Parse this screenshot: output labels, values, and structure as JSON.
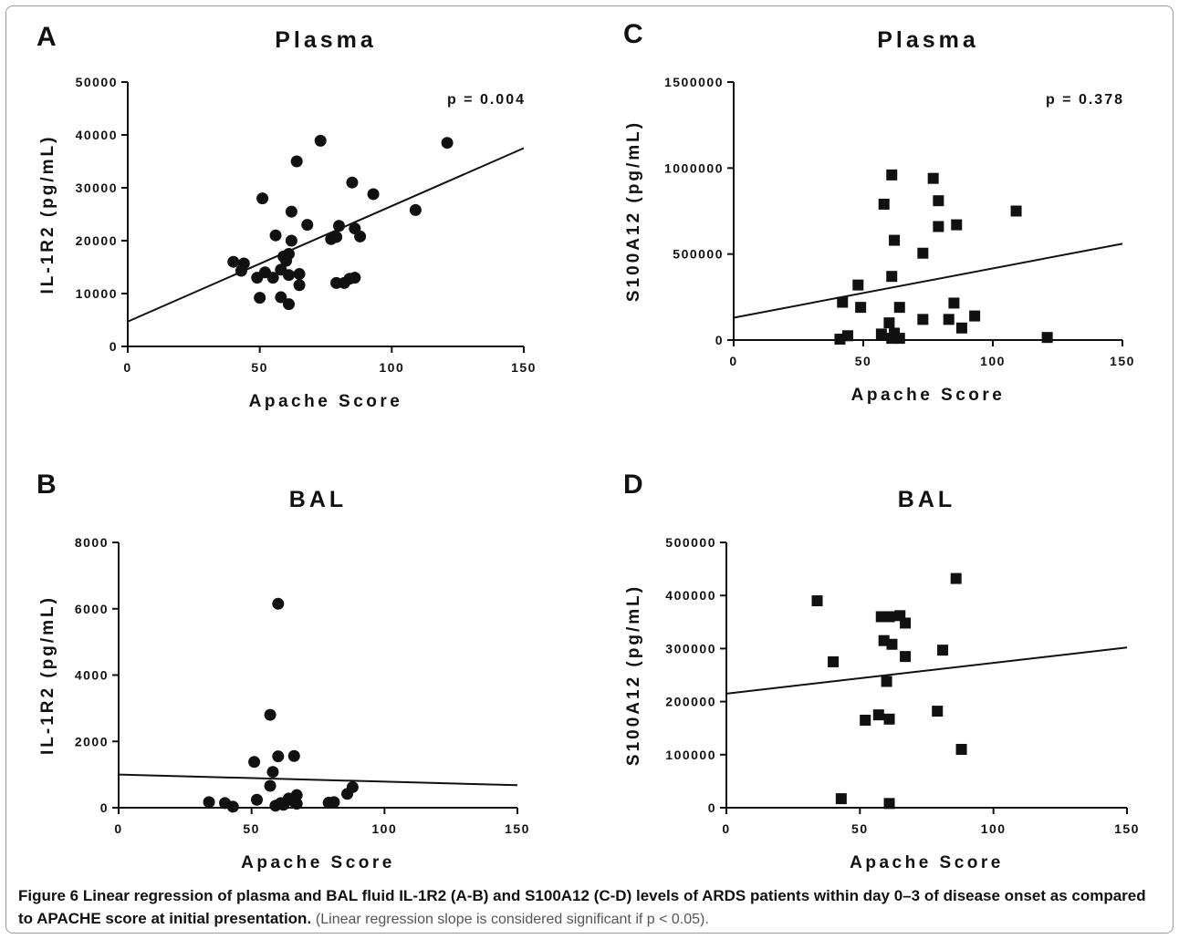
{
  "chart_data": [
    {
      "panel": "A",
      "type": "scatter",
      "marker": "circle",
      "title": "Plasma",
      "xlabel": "Apache Score",
      "ylabel": "IL-1R2 (pg/mL)",
      "xlim": [
        0,
        150
      ],
      "ylim": [
        0,
        50000
      ],
      "xticks": [
        "0",
        "50",
        "100",
        "150"
      ],
      "yticks": [
        "0",
        "10000",
        "20000",
        "30000",
        "40000",
        "50000"
      ],
      "annotation": "p = 0.004",
      "regression": {
        "x": [
          0,
          150
        ],
        "y": [
          4700,
          37500
        ]
      },
      "points": [
        [
          40,
          16000
        ],
        [
          43,
          14300
        ],
        [
          44,
          15700
        ],
        [
          49,
          13000
        ],
        [
          50,
          9200
        ],
        [
          51,
          28000
        ],
        [
          52,
          14000
        ],
        [
          55,
          13000
        ],
        [
          56,
          21000
        ],
        [
          58,
          14500
        ],
        [
          58,
          9300
        ],
        [
          59,
          17000
        ],
        [
          60,
          16200
        ],
        [
          61,
          17500
        ],
        [
          61,
          13500
        ],
        [
          61,
          8000
        ],
        [
          62,
          25500
        ],
        [
          62,
          20000
        ],
        [
          64,
          35000
        ],
        [
          65,
          13700
        ],
        [
          65,
          11600
        ],
        [
          68,
          23000
        ],
        [
          73,
          38900
        ],
        [
          77,
          20300
        ],
        [
          79,
          20700
        ],
        [
          79,
          12000
        ],
        [
          80,
          22800
        ],
        [
          82,
          12000
        ],
        [
          84,
          12800
        ],
        [
          85,
          31000
        ],
        [
          86,
          13000
        ],
        [
          86,
          22300
        ],
        [
          88,
          20800
        ],
        [
          93,
          28800
        ],
        [
          109,
          25800
        ],
        [
          121,
          38500
        ]
      ]
    },
    {
      "panel": "B",
      "type": "scatter",
      "marker": "circle",
      "title": "BAL",
      "xlabel": "Apache Score",
      "ylabel": "IL-1R2 (pg/mL)",
      "xlim": [
        0,
        150
      ],
      "ylim": [
        0,
        8000
      ],
      "xticks": [
        "0",
        "50",
        "100",
        "150"
      ],
      "yticks": [
        "0",
        "2000",
        "4000",
        "6000",
        "8000"
      ],
      "regression": {
        "x": [
          0,
          150
        ],
        "y": [
          1000,
          680
        ]
      },
      "points": [
        [
          34,
          170
        ],
        [
          40,
          140
        ],
        [
          43,
          30
        ],
        [
          51,
          1380
        ],
        [
          52,
          240
        ],
        [
          57,
          2800
        ],
        [
          57,
          660
        ],
        [
          58,
          1080
        ],
        [
          59,
          60
        ],
        [
          60,
          1550
        ],
        [
          60,
          6150
        ],
        [
          61,
          140
        ],
        [
          62,
          90
        ],
        [
          64,
          280
        ],
        [
          66,
          1560
        ],
        [
          66,
          180
        ],
        [
          67,
          380
        ],
        [
          67,
          120
        ],
        [
          79,
          150
        ],
        [
          81,
          170
        ],
        [
          86,
          420
        ],
        [
          88,
          620
        ]
      ]
    },
    {
      "panel": "C",
      "type": "scatter",
      "marker": "square",
      "title": "Plasma",
      "xlabel": "Apache Score",
      "ylabel": "S100A12 (pg/mL)",
      "xlim": [
        0,
        150
      ],
      "ylim": [
        0,
        1500000
      ],
      "xticks": [
        "0",
        "50",
        "100",
        "150"
      ],
      "yticks": [
        "0",
        "500000",
        "1000000",
        "1500000"
      ],
      "annotation": "p = 0.378",
      "regression": {
        "x": [
          0,
          150
        ],
        "y": [
          130000,
          560000
        ]
      },
      "points": [
        [
          41,
          5000
        ],
        [
          42,
          220000
        ],
        [
          44,
          25000
        ],
        [
          48,
          320000
        ],
        [
          49,
          190000
        ],
        [
          57,
          35000
        ],
        [
          58,
          790000
        ],
        [
          60,
          100000
        ],
        [
          61,
          960000
        ],
        [
          61,
          370000
        ],
        [
          61,
          10000
        ],
        [
          62,
          580000
        ],
        [
          62,
          40000
        ],
        [
          64,
          190000
        ],
        [
          64,
          10000
        ],
        [
          73,
          505000
        ],
        [
          73,
          120000
        ],
        [
          77,
          940000
        ],
        [
          79,
          660000
        ],
        [
          79,
          810000
        ],
        [
          83,
          120000
        ],
        [
          85,
          215000
        ],
        [
          86,
          670000
        ],
        [
          88,
          70000
        ],
        [
          93,
          140000
        ],
        [
          109,
          750000
        ],
        [
          121,
          15000
        ]
      ]
    },
    {
      "panel": "D",
      "type": "scatter",
      "marker": "square",
      "title": "BAL",
      "xlabel": "Apache Score",
      "ylabel": "S100A12 (pg/mL)",
      "xlim": [
        0,
        150
      ],
      "ylim": [
        0,
        500000
      ],
      "xticks": [
        "0",
        "50",
        "100",
        "150"
      ],
      "yticks": [
        "0",
        "100000",
        "200000",
        "300000",
        "400000",
        "500000"
      ],
      "regression": {
        "x": [
          0,
          150
        ],
        "y": [
          215000,
          302000
        ]
      },
      "points": [
        [
          34,
          390000
        ],
        [
          40,
          275000
        ],
        [
          43,
          17000
        ],
        [
          52,
          165000
        ],
        [
          57,
          175000
        ],
        [
          58,
          360000
        ],
        [
          59,
          315000
        ],
        [
          60,
          238000
        ],
        [
          61,
          360000
        ],
        [
          61,
          167000
        ],
        [
          61,
          8000
        ],
        [
          62,
          308000
        ],
        [
          65,
          362000
        ],
        [
          67,
          348000
        ],
        [
          67,
          285000
        ],
        [
          79,
          182000
        ],
        [
          81,
          297000
        ],
        [
          86,
          432000
        ],
        [
          88,
          110000
        ]
      ]
    }
  ],
  "caption": {
    "bold": "Figure 6 Linear regression of plasma and BAL fluid IL-1R2 (A-B) and S100A12 (C-D) levels of ARDS patients within day 0–3 of disease onset as compared to APACHE score at initial presentation.",
    "note": "(Linear regression slope is considered significant if p < 0.05)."
  }
}
